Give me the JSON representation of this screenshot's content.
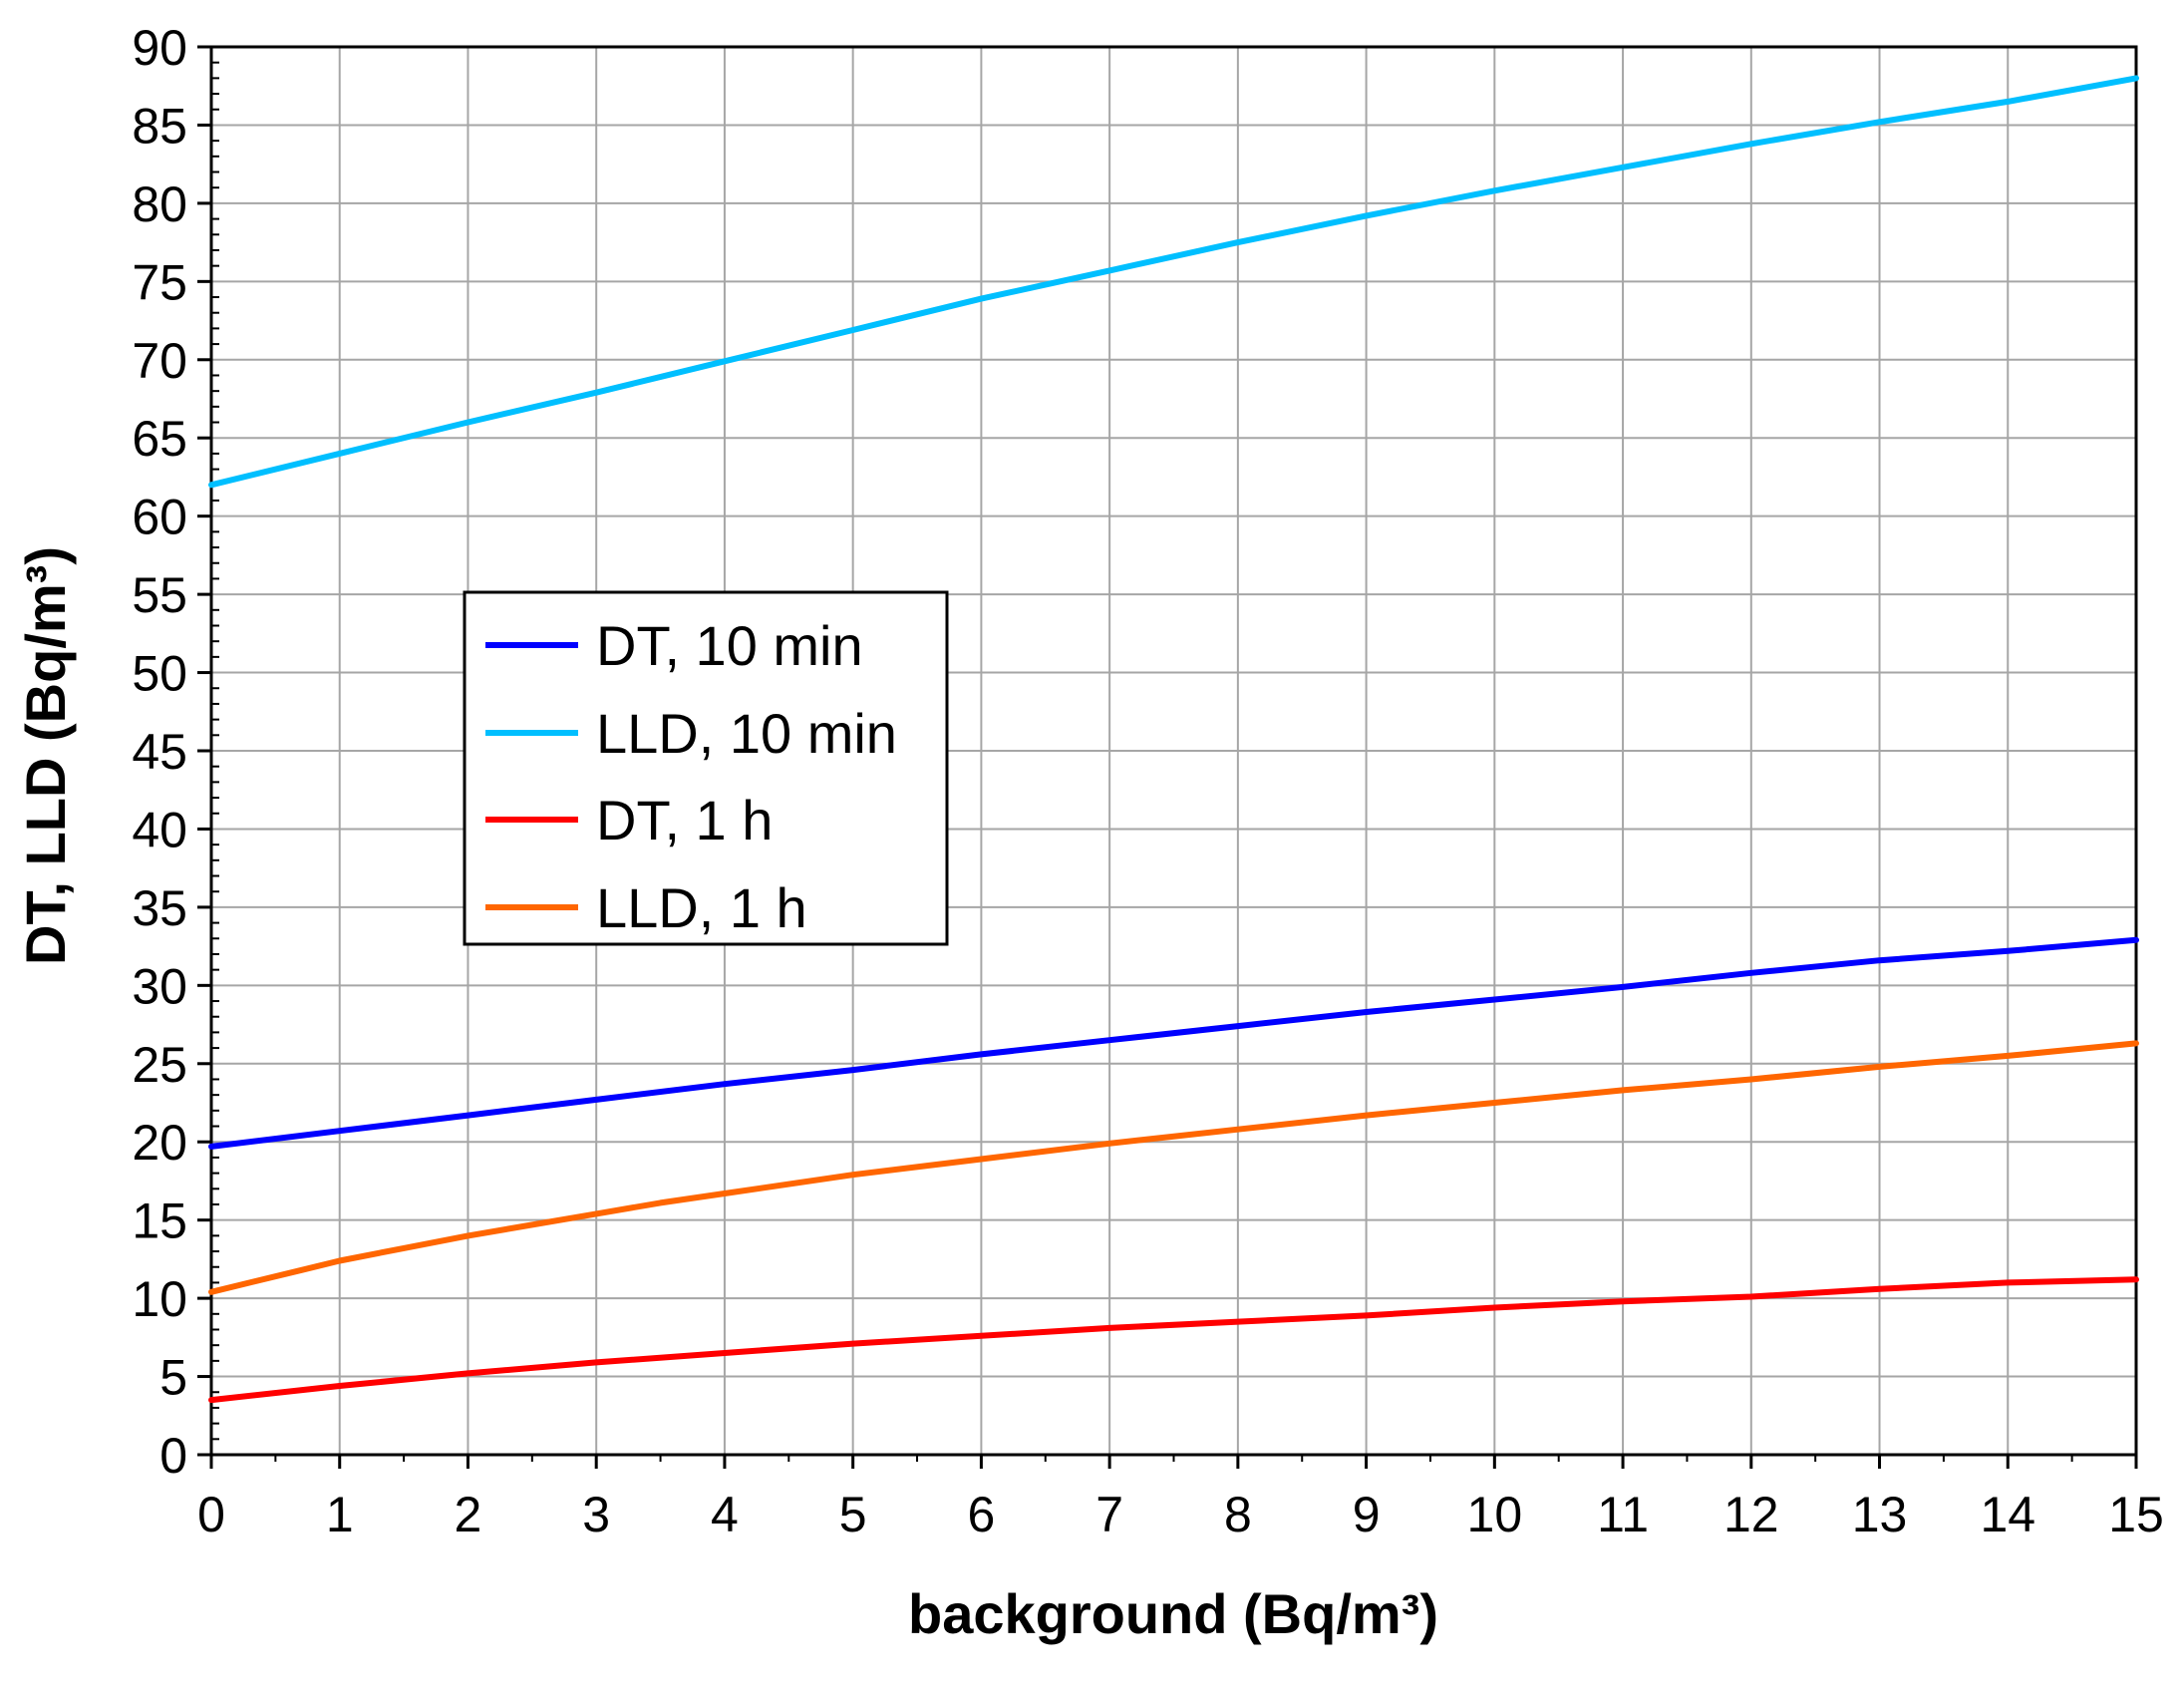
{
  "chart_data": {
    "type": "line",
    "xlabel": "background (Bq/m³)",
    "ylabel": "DT, LLD (Bq/m³)",
    "xlim": [
      0,
      15
    ],
    "ylim": [
      0,
      90
    ],
    "x_ticks": [
      "0",
      "1",
      "2",
      "3",
      "4",
      "5",
      "6",
      "7",
      "8",
      "9",
      "10",
      "11",
      "12",
      "13",
      "14",
      "15"
    ],
    "y_ticks": [
      "0",
      "5",
      "10",
      "15",
      "20",
      "25",
      "30",
      "35",
      "40",
      "45",
      "50",
      "55",
      "60",
      "65",
      "70",
      "75",
      "80",
      "85",
      "90"
    ],
    "grid": true,
    "legend_position": "center-left",
    "series": [
      {
        "name": "DT, 10 min",
        "color": "#0000ff",
        "x": [
          0,
          1,
          2,
          3,
          4,
          5,
          6,
          7,
          8,
          9,
          10,
          11,
          12,
          13,
          14,
          15
        ],
        "y": [
          19.7,
          20.7,
          21.7,
          22.7,
          23.7,
          24.6,
          25.6,
          26.5,
          27.4,
          28.3,
          29.1,
          29.9,
          30.8,
          31.6,
          32.2,
          32.9
        ]
      },
      {
        "name": "LLD, 10 min",
        "color": "#00bfff",
        "x": [
          0,
          1,
          2,
          3,
          4,
          5,
          6,
          7,
          8,
          9,
          10,
          11,
          12,
          13,
          14,
          15
        ],
        "y": [
          62.0,
          64.0,
          66.0,
          67.9,
          69.9,
          71.9,
          73.9,
          75.7,
          77.5,
          79.2,
          80.8,
          82.3,
          83.8,
          85.2,
          86.5,
          88.0
        ]
      },
      {
        "name": "DT, 1 h",
        "color": "#ff0000",
        "x": [
          0,
          1,
          2,
          3,
          4,
          5,
          6,
          7,
          8,
          9,
          10,
          11,
          12,
          13,
          14,
          15
        ],
        "y": [
          3.5,
          4.4,
          5.2,
          5.9,
          6.5,
          7.1,
          7.6,
          8.1,
          8.5,
          8.9,
          9.4,
          9.8,
          10.1,
          10.6,
          11.0,
          11.2
        ]
      },
      {
        "name": "LLD, 1 h",
        "color": "#ff6600",
        "x": [
          0,
          0.7,
          1,
          1.5,
          2,
          3,
          3.5,
          4,
          5,
          6,
          7,
          8,
          9,
          10,
          11,
          12,
          13,
          14,
          15
        ],
        "y": [
          10.4,
          11.8,
          12.4,
          13.2,
          14.0,
          15.4,
          16.1,
          16.7,
          17.9,
          18.9,
          19.9,
          20.8,
          21.7,
          22.5,
          23.3,
          24.0,
          24.8,
          25.5,
          26.3
        ]
      }
    ]
  }
}
